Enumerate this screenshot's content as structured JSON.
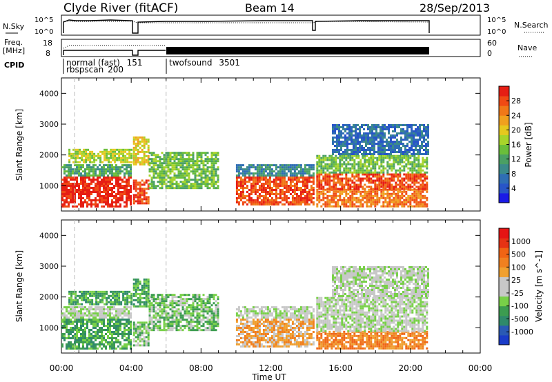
{
  "header": {
    "station": "Clyde River (fitACF)",
    "beam": "Beam 14",
    "date": "28/Sep/2013"
  },
  "top_panels": {
    "nsky": {
      "label": "N.Sky",
      "yticks": [
        "10^5",
        "10^0"
      ],
      "right_label": "N.Search",
      "right_yticks": [
        "10^5",
        "10^0"
      ]
    },
    "freq": {
      "label_line1": "Freq.",
      "label_line2": "[MHz]",
      "yticks": [
        "18",
        "8"
      ],
      "right_label": "Nave",
      "right_yticks": [
        "60",
        "0"
      ]
    },
    "cpid": {
      "label": "CPID",
      "modes": [
        {
          "name": "normal (fast)",
          "id": "151",
          "start_h": 0.0,
          "end_h": 6.0
        },
        {
          "name": "rbspscan",
          "id": "200",
          "start_h": 0.0,
          "end_h": 6.0
        },
        {
          "name": "twofsound",
          "id": "3501",
          "start_h": 6.0,
          "end_h": 21.0
        }
      ],
      "gap_markers_h": [
        0.75,
        4.0,
        6.0
      ],
      "overlap_text": "rbsp",
      "overlap_text2": "sp",
      "overlap_text3": "0"
    },
    "data_gaps_h": [
      [
        4.0,
        4.1
      ],
      [
        14.4,
        14.6
      ]
    ]
  },
  "panels": [
    {
      "id": "power",
      "ylabel": "Slant Range [km]",
      "colorbar_label": "Power [dB]",
      "colorbar_ticks": [
        "28",
        "24",
        "20",
        "16",
        "12",
        "8",
        "4"
      ],
      "colors": [
        "#1a1ae6",
        "#2855c8",
        "#2f6eb4",
        "#3b8a8a",
        "#4aa064",
        "#6abe3a",
        "#a8d42a",
        "#e6c81e",
        "#f0a01e",
        "#f07818",
        "#f04a14",
        "#e61e14"
      ]
    },
    {
      "id": "velocity",
      "ylabel": "Slant Range [km]",
      "colorbar_label": "Velocity [m s^-1]",
      "colorbar_ticks": [
        "1000",
        "500",
        "100",
        "25",
        "-25",
        "-100",
        "-500",
        "-1000"
      ],
      "colors": [
        "#1a3cc8",
        "#2a5ab4",
        "#2f8a6a",
        "#3c9c50",
        "#78d048",
        "#c8c8c8",
        "#c8c8c8",
        "#f0a030",
        "#f08020",
        "#f06414",
        "#e63214",
        "#e61414"
      ]
    }
  ],
  "chart_data": {
    "type": "heatmap",
    "xlabel": "Time UT",
    "xlim": [
      0,
      24
    ],
    "xticks": [
      "00:00",
      "04:00",
      "08:00",
      "12:00",
      "16:00",
      "20:00",
      "00:00"
    ],
    "ylim": [
      180,
      4500
    ],
    "yticks": [
      1000,
      2000,
      3000,
      4000
    ],
    "data_end_h": 21.0,
    "regions": [
      {
        "t0": 0.0,
        "t1": 4.0,
        "r0": 350,
        "r1": 1300,
        "power_level": 11,
        "vel_level": 3
      },
      {
        "t0": 0.0,
        "t1": 4.0,
        "r0": 1300,
        "r1": 1700,
        "power_level": 4,
        "vel_level": 5
      },
      {
        "t0": 0.4,
        "t1": 4.0,
        "r0": 1750,
        "r1": 2200,
        "power_level": 6,
        "vel_level": 3
      },
      {
        "t0": 4.1,
        "t1": 5.0,
        "r0": 400,
        "r1": 1200,
        "power_level": 10,
        "vel_level": 4
      },
      {
        "t0": 4.1,
        "t1": 5.0,
        "r0": 1700,
        "r1": 2600,
        "power_level": 7,
        "vel_level": 3
      },
      {
        "t0": 5.0,
        "t1": 9.0,
        "r0": 900,
        "r1": 2100,
        "power_level": 5,
        "vel_level": 4
      },
      {
        "t0": 10.0,
        "t1": 14.4,
        "r0": 400,
        "r1": 1300,
        "power_level": 10,
        "vel_level": 7
      },
      {
        "t0": 10.0,
        "t1": 14.4,
        "r0": 1300,
        "r1": 1700,
        "power_level": 3,
        "vel_level": 5
      },
      {
        "t0": 14.6,
        "t1": 21.0,
        "r0": 350,
        "r1": 900,
        "power_level": 9,
        "vel_level": 8
      },
      {
        "t0": 14.6,
        "t1": 21.0,
        "r0": 900,
        "r1": 1400,
        "power_level": 10,
        "vel_level": 5
      },
      {
        "t0": 14.6,
        "t1": 21.0,
        "r0": 1400,
        "r1": 2000,
        "power_level": 5,
        "vel_level": 5
      },
      {
        "t0": 15.5,
        "t1": 21.0,
        "r0": 2000,
        "r1": 3000,
        "power_level": 2,
        "vel_level": 5
      }
    ]
  }
}
